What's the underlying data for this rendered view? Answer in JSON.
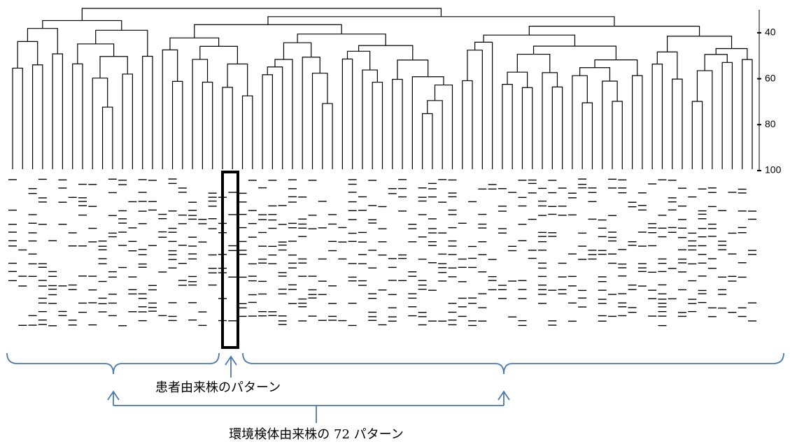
{
  "axis": {
    "ylim": [
      30,
      100
    ],
    "yticks": [
      40,
      60,
      80,
      100
    ]
  },
  "labels": {
    "patient": "患者由来株のパターン",
    "environment": "環境検体由来株の 72 パターン"
  }
}
